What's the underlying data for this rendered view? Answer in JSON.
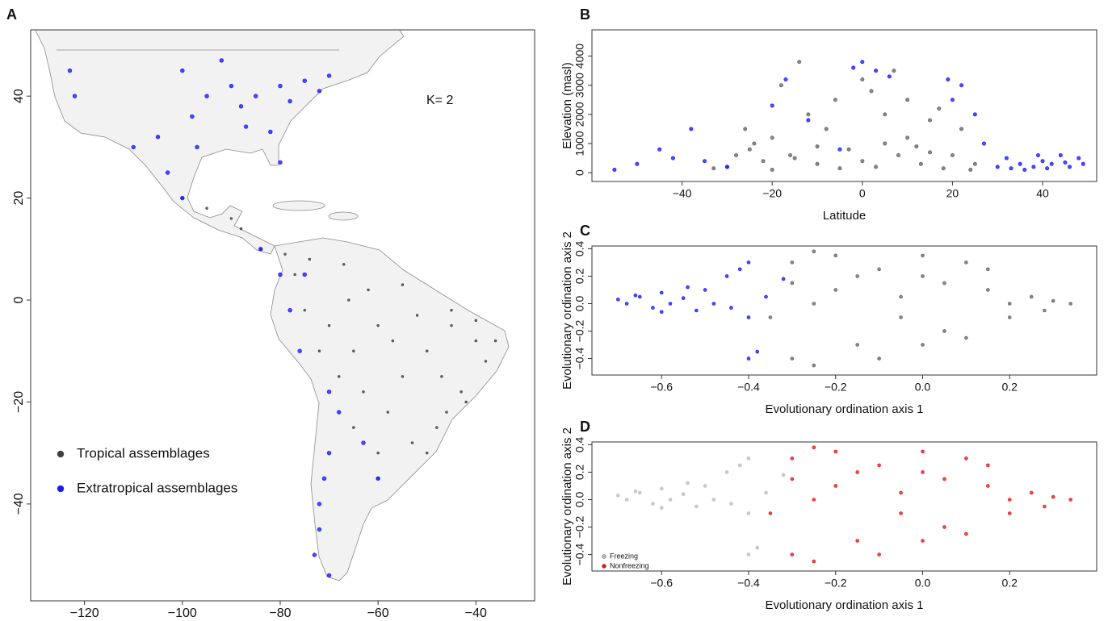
{
  "chart_data": [
    {
      "type": "scatter",
      "panel_label": "A",
      "annotation": "K= 2",
      "legend": "lower left",
      "xlim": [
        -131,
        -28
      ],
      "ylim": [
        -59,
        53
      ],
      "xticks": [
        {
          "value": -120,
          "label": "−120"
        },
        {
          "value": -100,
          "label": "−100"
        },
        {
          "value": -80,
          "label": "−80"
        },
        {
          "value": -60,
          "label": "−60"
        },
        {
          "value": -40,
          "label": "−40"
        }
      ],
      "yticks": [
        {
          "value": -40,
          "label": "−40"
        },
        {
          "value": -20,
          "label": "−20"
        },
        0,
        20,
        40
      ],
      "series": [
        {
          "name": "Tropical assemblages",
          "color": "#404040",
          "x": [
            -50,
            -45,
            -40,
            -38,
            -42,
            -48,
            -55,
            -60,
            -65,
            -70,
            -75,
            -62,
            -55,
            -52,
            -47,
            -43,
            -58,
            -53,
            -50,
            -65,
            -60,
            -63,
            -68,
            -72,
            -77,
            -74,
            -67,
            -84,
            -88,
            -90,
            -95,
            -100,
            -60,
            -45,
            -40,
            -36,
            -46,
            -57,
            -66,
            -79
          ],
          "values": [
            -10,
            -5,
            -8,
            -12,
            -20,
            -25,
            -15,
            -5,
            -10,
            -5,
            -2,
            2,
            3,
            -3,
            -15,
            -18,
            -22,
            -28,
            -30,
            -25,
            -30,
            -18,
            -15,
            -10,
            5,
            8,
            7,
            10,
            14,
            16,
            18,
            20,
            -35,
            -2,
            -4,
            -8,
            -22,
            -8,
            0,
            9
          ]
        },
        {
          "name": "Extratropical assemblages",
          "color": "#1a1aff",
          "x": [
            -90,
            -85,
            -80,
            -75,
            -70,
            -95,
            -100,
            -88,
            -82,
            -80,
            -97,
            -105,
            -110,
            -103,
            -123,
            -122,
            -92,
            -78,
            -72,
            -87,
            -98,
            -100,
            -84,
            -78,
            -76,
            -70,
            -68,
            -70,
            -71,
            -72,
            -72,
            -73,
            -70,
            -63,
            -60,
            -80,
            -75
          ],
          "values": [
            42,
            40,
            42,
            43,
            44,
            40,
            45,
            38,
            33,
            27,
            30,
            32,
            30,
            25,
            45,
            40,
            47,
            39,
            41,
            34,
            36,
            20,
            10,
            -2,
            -10,
            -18,
            -22,
            -30,
            -35,
            -40,
            -45,
            -50,
            -54,
            -28,
            -35,
            5,
            5
          ]
        }
      ]
    },
    {
      "type": "scatter",
      "panel_label": "B",
      "x_label": "Latitude",
      "y_label": "Elevation (masl)",
      "xlim": [
        -60,
        52
      ],
      "ylim": [
        -300,
        4900
      ],
      "xticks": [
        {
          "value": -40,
          "label": "−40"
        },
        {
          "value": -20,
          "label": "−20"
        },
        0,
        20,
        40
      ],
      "yticks": [
        0,
        1000,
        2000,
        3000,
        4000
      ],
      "series": [
        {
          "color": "#666666",
          "x": [
            -30,
            -25,
            -20,
            -15,
            -10,
            -5,
            0,
            5,
            10,
            15,
            20,
            25,
            -28,
            -22,
            -18,
            -12,
            -8,
            -3,
            2,
            7,
            12,
            17,
            22,
            -33,
            -26,
            -14,
            -6,
            3,
            8,
            13,
            18,
            24,
            -20,
            -10,
            0,
            5,
            15,
            -24,
            -16,
            10
          ],
          "values": [
            200,
            800,
            1200,
            500,
            300,
            150,
            400,
            1000,
            2500,
            1800,
            600,
            300,
            600,
            400,
            3000,
            2000,
            1500,
            800,
            2800,
            3500,
            900,
            2200,
            1500,
            150,
            1500,
            3800,
            2500,
            200,
            600,
            300,
            150,
            100,
            100,
            900,
            3200,
            2000,
            700,
            1000,
            600,
            1200
          ]
        },
        {
          "color": "#1a1aff",
          "x": [
            -55,
            -50,
            -45,
            -42,
            -38,
            -35,
            -30,
            -20,
            -17,
            -12,
            -5,
            -2,
            0,
            3,
            6,
            19,
            20,
            22,
            25,
            27,
            30,
            32,
            35,
            38,
            40,
            42,
            44,
            46,
            48,
            49,
            36,
            41,
            45,
            33,
            39
          ],
          "values": [
            100,
            300,
            800,
            500,
            1500,
            400,
            200,
            2300,
            3200,
            1800,
            800,
            3600,
            3800,
            3500,
            3300,
            3200,
            2500,
            3000,
            2000,
            1000,
            200,
            500,
            300,
            200,
            400,
            300,
            600,
            200,
            500,
            300,
            100,
            150,
            350,
            150,
            600
          ]
        }
      ]
    },
    {
      "type": "scatter",
      "panel_label": "C",
      "x_label": "Evolutionary ordination axis 1",
      "y_label": "Evolutionary ordination axis 2",
      "xlim": [
        -0.76,
        0.4
      ],
      "ylim": [
        -0.52,
        0.42
      ],
      "xticks": [
        {
          "value": -0.6,
          "label": "−0.6"
        },
        {
          "value": -0.4,
          "label": "−0.4"
        },
        {
          "value": -0.2,
          "label": "−0.2"
        },
        {
          "value": 0,
          "label": "0.0"
        },
        0.2
      ],
      "yticks": [
        {
          "value": -0.4,
          "label": "−0.4"
        },
        {
          "value": -0.2,
          "label": "−0.2"
        },
        {
          "value": 0,
          "label": "0.0"
        },
        0.2,
        0.4
      ],
      "series": [
        {
          "color": "#666666",
          "x": [
            -0.3,
            -0.25,
            -0.2,
            -0.15,
            -0.1,
            -0.05,
            0,
            0.05,
            0.1,
            0.15,
            0.2,
            0.25,
            0.3,
            0.34,
            -0.35,
            -0.3,
            -0.25,
            -0.2,
            -0.1,
            0,
            0.1,
            0.2,
            -0.05,
            0.05,
            -0.15,
            -0.25,
            0,
            0.15,
            -0.3,
            0.28
          ],
          "values": [
            0.3,
            0.38,
            0.1,
            -0.3,
            0.25,
            -0.1,
            0.2,
            -0.2,
            0.3,
            0.1,
            0,
            0.05,
            0.02,
            0,
            -0.1,
            -0.4,
            -0.45,
            0.35,
            -0.4,
            0.35,
            -0.25,
            -0.1,
            0.05,
            0.15,
            0.2,
            0,
            -0.3,
            0.25,
            0.15,
            -0.05
          ]
        },
        {
          "color": "#1a1aff",
          "x": [
            -0.7,
            -0.68,
            -0.65,
            -0.62,
            -0.6,
            -0.58,
            -0.55,
            -0.52,
            -0.5,
            -0.48,
            -0.45,
            -0.42,
            -0.4,
            -0.38,
            -0.36,
            -0.4,
            -0.44,
            -0.6,
            -0.66,
            -0.54,
            -0.4,
            -0.32
          ],
          "values": [
            0.03,
            0,
            0.05,
            -0.03,
            0.08,
            0,
            0.04,
            -0.05,
            0.1,
            0,
            0.2,
            0.25,
            -0.1,
            -0.35,
            0.05,
            0.3,
            -0.03,
            -0.06,
            0.06,
            0.12,
            -0.4,
            0.18
          ]
        }
      ]
    },
    {
      "type": "scatter",
      "panel_label": "D",
      "x_label": "Evolutionary ordination axis 1",
      "y_label": "Evolutionary ordination axis 2",
      "legend": "lower left",
      "xlim": [
        -0.76,
        0.4
      ],
      "ylim": [
        -0.52,
        0.42
      ],
      "xticks": [
        {
          "value": -0.6,
          "label": "−0.6"
        },
        {
          "value": -0.4,
          "label": "−0.4"
        },
        {
          "value": -0.2,
          "label": "−0.2"
        },
        {
          "value": 0,
          "label": "0.0"
        },
        0.2
      ],
      "yticks": [
        {
          "value": -0.4,
          "label": "−0.4"
        },
        {
          "value": -0.2,
          "label": "−0.2"
        },
        {
          "value": 0,
          "label": "0.0"
        },
        0.2,
        0.4
      ],
      "series": [
        {
          "name": "Freezing",
          "color": "#bdbdbd",
          "x": [
            -0.7,
            -0.68,
            -0.65,
            -0.62,
            -0.6,
            -0.58,
            -0.55,
            -0.52,
            -0.5,
            -0.48,
            -0.45,
            -0.42,
            -0.4,
            -0.38,
            -0.36,
            -0.4,
            -0.44,
            -0.6,
            -0.66,
            -0.54,
            -0.4,
            -0.32
          ],
          "values": [
            0.03,
            0,
            0.05,
            -0.03,
            0.08,
            0,
            0.04,
            -0.05,
            0.1,
            0,
            0.2,
            0.25,
            -0.1,
            -0.35,
            0.05,
            0.3,
            -0.03,
            -0.06,
            0.06,
            0.12,
            -0.4,
            0.18
          ]
        },
        {
          "name": "Nonfreezing",
          "color": "#e31a1a",
          "x": [
            -0.3,
            -0.25,
            -0.2,
            -0.15,
            -0.1,
            -0.05,
            0,
            0.05,
            0.1,
            0.15,
            0.2,
            0.25,
            0.3,
            0.34,
            -0.35,
            -0.3,
            -0.25,
            -0.2,
            -0.1,
            0,
            0.1,
            0.2,
            -0.05,
            0.05,
            -0.15,
            -0.25,
            0,
            0.15,
            -0.3,
            0.28
          ],
          "values": [
            0.3,
            0.38,
            0.1,
            -0.3,
            0.25,
            -0.1,
            0.2,
            -0.2,
            0.3,
            0.1,
            0,
            0.05,
            0.02,
            0,
            -0.1,
            -0.4,
            -0.45,
            0.35,
            -0.4,
            0.35,
            -0.25,
            -0.1,
            0.05,
            0.15,
            0.2,
            0,
            -0.3,
            0.25,
            0.15,
            -0.05
          ]
        }
      ]
    }
  ]
}
